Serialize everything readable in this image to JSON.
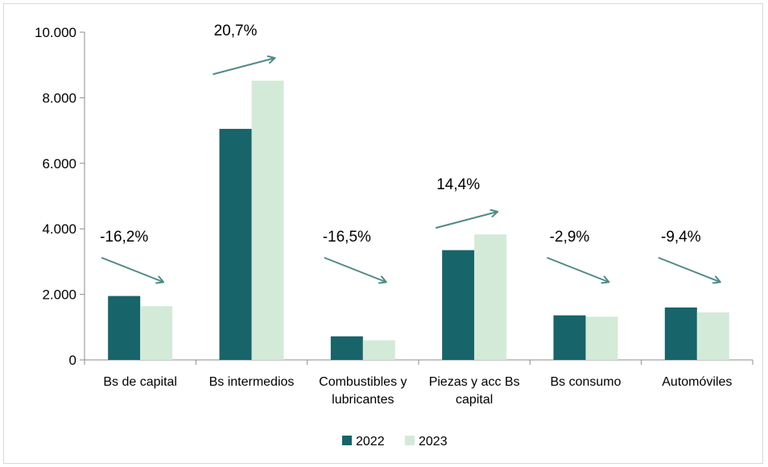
{
  "chart_data": {
    "type": "bar",
    "categories": [
      [
        "Bs de capital"
      ],
      [
        "Bs intermedios"
      ],
      [
        "Combustibles y",
        "lubricantes"
      ],
      [
        "Piezas y acc Bs",
        "capital"
      ],
      [
        "Bs consumo"
      ],
      [
        "Automóviles"
      ]
    ],
    "series": [
      {
        "name": "2022",
        "color": "#17646a",
        "values": [
          1950,
          7050,
          720,
          3350,
          1360,
          1600
        ]
      },
      {
        "name": "2023",
        "color": "#d4ead9",
        "values": [
          1640,
          8520,
          600,
          3830,
          1320,
          1450
        ]
      }
    ],
    "annotations": [
      {
        "text": "-16,2%",
        "direction": "down"
      },
      {
        "text": "20,7%",
        "direction": "up"
      },
      {
        "text": "-16,5%",
        "direction": "down"
      },
      {
        "text": "14,4%",
        "direction": "up"
      },
      {
        "text": "-2,9%",
        "direction": "down"
      },
      {
        "text": "-9,4%",
        "direction": "down"
      }
    ],
    "yticks": [
      "0",
      "2.000",
      "4.000",
      "6.000",
      "8.000",
      "10.000"
    ],
    "ytick_values": [
      0,
      2000,
      4000,
      6000,
      8000,
      10000
    ],
    "ylim": [
      0,
      10000
    ],
    "arrow_color": "#4f8a85",
    "legend_position": "bottom",
    "grid": false
  }
}
